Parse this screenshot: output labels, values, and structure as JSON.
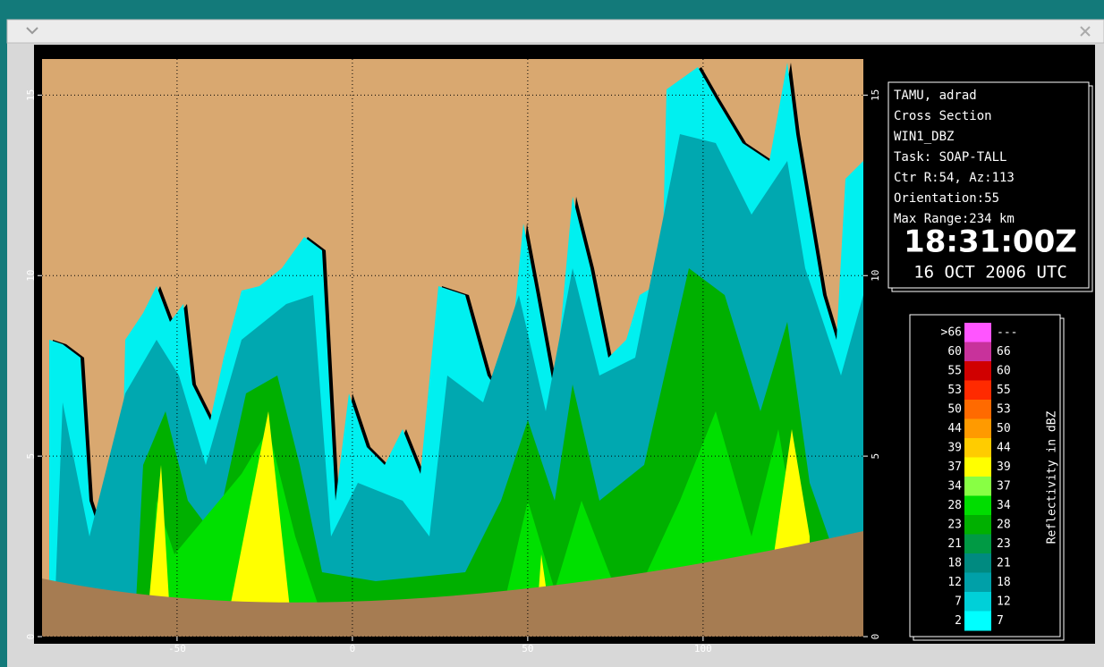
{
  "plot": {
    "xlim": [
      -88.5,
      145.7
    ],
    "ylim": [
      0,
      16
    ],
    "xticks": [
      -50,
      0,
      50,
      100
    ],
    "yticks": [
      0,
      5,
      10,
      15
    ],
    "grid": true
  },
  "info": {
    "lines": [
      "TAMU, adrad",
      "Cross Section",
      "WIN1_DBZ",
      "Task: SOAP-TALL",
      "Ctr R:54, Az:113",
      "Orientation:55",
      "Max Range:234 km"
    ],
    "time": "18:31:00Z",
    "date": "16 OCT 2006 UTC"
  },
  "legend": {
    "title": "Reflectivity in dBZ",
    "bins": [
      {
        "low": ">66",
        "high": "---",
        "color": "#ff55ff"
      },
      {
        "low": "60",
        "high": "66",
        "color": "#c8329b"
      },
      {
        "low": "55",
        "high": "60",
        "color": "#d00000"
      },
      {
        "low": "53",
        "high": "55",
        "color": "#ff2a00"
      },
      {
        "low": "50",
        "high": "53",
        "color": "#ff6a00"
      },
      {
        "low": "44",
        "high": "50",
        "color": "#ff9a00"
      },
      {
        "low": "39",
        "high": "44",
        "color": "#ffcc00"
      },
      {
        "low": "37",
        "high": "39",
        "color": "#ffff00"
      },
      {
        "low": "34",
        "high": "37",
        "color": "#88ff44"
      },
      {
        "low": "28",
        "high": "34",
        "color": "#00dd00"
      },
      {
        "low": "23",
        "high": "28",
        "color": "#00b000"
      },
      {
        "low": "21",
        "high": "23",
        "color": "#009a44"
      },
      {
        "low": "18",
        "high": "21",
        "color": "#008a80"
      },
      {
        "low": "12",
        "high": "18",
        "color": "#00a0a8"
      },
      {
        "low": "7",
        "high": "12",
        "color": "#00d0d8"
      },
      {
        "low": "2",
        "high": "7",
        "color": "#00ffff"
      }
    ]
  }
}
